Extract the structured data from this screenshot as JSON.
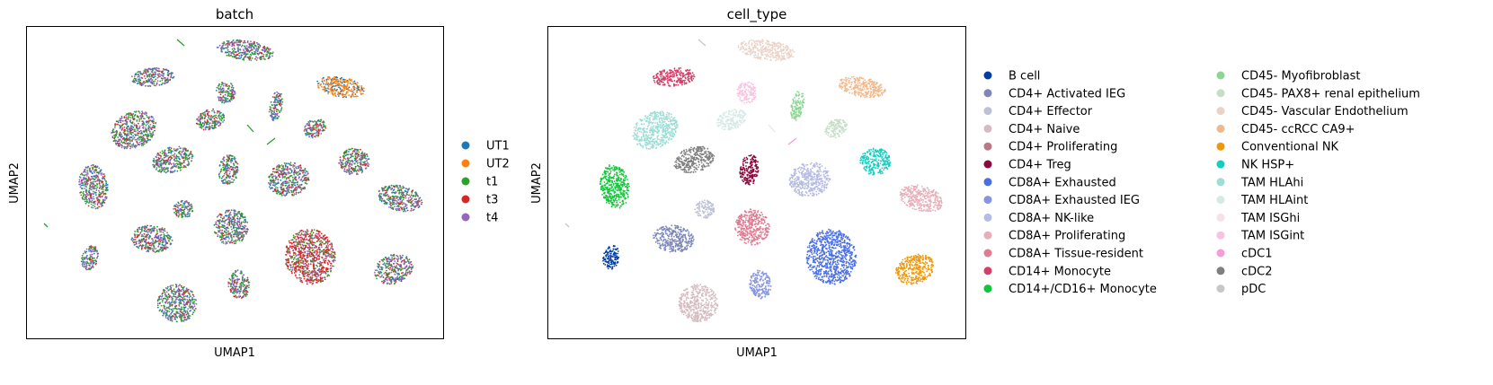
{
  "chart_data": [
    {
      "type": "scatter",
      "title": "batch",
      "xlabel": "UMAP1",
      "ylabel": "UMAP2",
      "grid": false,
      "legend_placement": "right",
      "series": [
        {
          "name": "UT1",
          "color": "#1f77b4"
        },
        {
          "name": "UT2",
          "color": "#ff7f0e"
        },
        {
          "name": "t1",
          "color": "#2ca02c"
        },
        {
          "name": "t3",
          "color": "#d62728"
        },
        {
          "name": "t4",
          "color": "#9467bd"
        }
      ]
    },
    {
      "type": "scatter",
      "title": "cell_type",
      "xlabel": "UMAP1",
      "ylabel": "UMAP2",
      "grid": false,
      "legend_placement": "right",
      "series": [
        {
          "name": "B cell",
          "color": "#023fa5"
        },
        {
          "name": "CD4+ Activated IEG",
          "color": "#7d87b9"
        },
        {
          "name": "CD4+ Effector",
          "color": "#bec1d4"
        },
        {
          "name": "CD4+ Naive",
          "color": "#d6bcc0"
        },
        {
          "name": "CD4+ Proliferating",
          "color": "#bb7784"
        },
        {
          "name": "CD4+ Treg",
          "color": "#8e063b"
        },
        {
          "name": "CD8A+ Exhausted",
          "color": "#4a6fe3"
        },
        {
          "name": "CD8A+ Exhausted IEG",
          "color": "#8595e1"
        },
        {
          "name": "CD8A+ NK-like",
          "color": "#b5bbe3"
        },
        {
          "name": "CD8A+ Proliferating",
          "color": "#e6afb9"
        },
        {
          "name": "CD8A+ Tissue-resident",
          "color": "#e07b91"
        },
        {
          "name": "CD14+ Monocyte",
          "color": "#d33f6a"
        },
        {
          "name": "CD14+/CD16+ Monocyte",
          "color": "#11c638"
        },
        {
          "name": "CD45- Myofibroblast",
          "color": "#8dd593"
        },
        {
          "name": "CD45- PAX8+ renal epithelium",
          "color": "#c6dec7"
        },
        {
          "name": "CD45- Vascular Endothelium",
          "color": "#ead3c6"
        },
        {
          "name": "CD45- ccRCC CA9+",
          "color": "#f0b98d"
        },
        {
          "name": "Conventional NK",
          "color": "#ef9708"
        },
        {
          "name": "NK HSP+",
          "color": "#0fcfc0"
        },
        {
          "name": "TAM HLAhi",
          "color": "#9cded6"
        },
        {
          "name": "TAM HLAint",
          "color": "#d5eae7"
        },
        {
          "name": "TAM ISGhi",
          "color": "#f3e1eb"
        },
        {
          "name": "TAM ISGint",
          "color": "#f6c4e1"
        },
        {
          "name": "cDC1",
          "color": "#f79cd4"
        },
        {
          "name": "cDC2",
          "color": "#7f7f7f"
        },
        {
          "name": "pDC",
          "color": "#c7c7c7"
        }
      ]
    }
  ]
}
